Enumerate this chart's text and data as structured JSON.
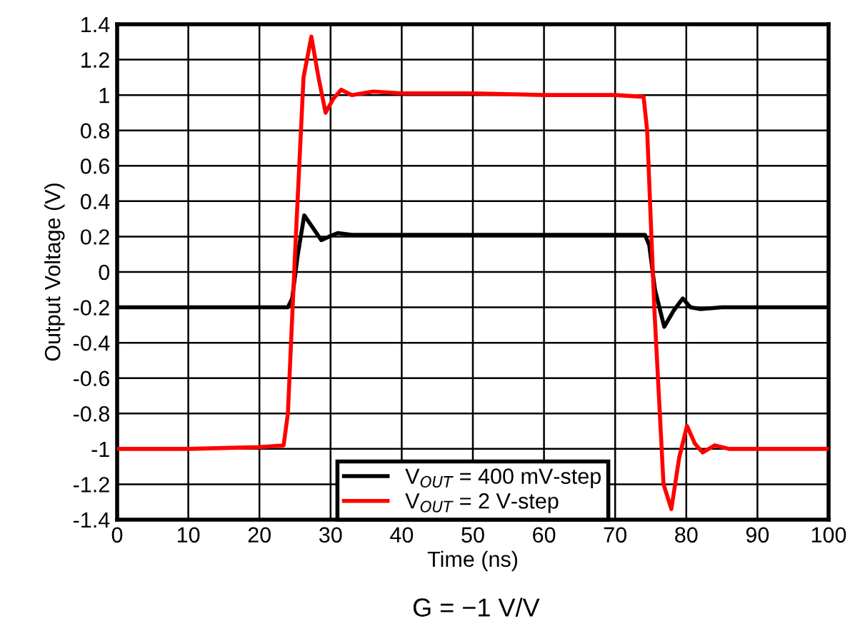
{
  "chart_data": {
    "type": "line",
    "xlabel": "Time (ns)",
    "ylabel": "Output Voltage (V)",
    "xlim": [
      0,
      100
    ],
    "xticks": [
      0,
      10,
      20,
      30,
      40,
      50,
      60,
      70,
      80,
      90,
      100
    ],
    "ylim": [
      -1.4,
      1.4
    ],
    "yticks": [
      1.4,
      1.2,
      1,
      0.8,
      0.6,
      0.4,
      0.2,
      0,
      -0.2,
      -0.4,
      -0.6,
      -0.8,
      -1,
      -1.2,
      -1.4
    ],
    "grid": true,
    "legend": "bottom",
    "line_style": "solid",
    "marker": "none",
    "annotations": [
      "G = −1 V/V"
    ],
    "series": [
      {
        "name": "V$_{OUT}$ = 400 mV-step",
        "color": "#000000",
        "x": [
          0,
          10,
          20,
          24.0,
          24.6,
          25.4,
          26.3,
          27.5,
          28.7,
          29.8,
          31.0,
          33,
          40,
          50,
          60,
          70,
          74.2,
          74.8,
          75.6,
          76.9,
          78.2,
          79.5,
          80.6,
          82,
          85,
          90,
          100
        ],
        "values": [
          -0.2,
          -0.2,
          -0.2,
          -0.2,
          -0.15,
          0.1,
          0.32,
          0.25,
          0.18,
          0.2,
          0.22,
          0.21,
          0.21,
          0.21,
          0.21,
          0.21,
          0.21,
          0.15,
          -0.1,
          -0.31,
          -0.22,
          -0.15,
          -0.2,
          -0.21,
          -0.2,
          -0.2,
          -0.2
        ]
      },
      {
        "name": "V$_{OUT}$ = 2 V-step",
        "color": "#ff0000",
        "x": [
          0,
          10,
          20,
          23.4,
          24.0,
          25.0,
          26.2,
          27.3,
          28.3,
          29.3,
          30.4,
          31.5,
          33,
          36,
          40,
          50,
          60,
          70,
          74.0,
          74.5,
          75.5,
          76.8,
          77.9,
          79.0,
          80.1,
          81.2,
          82.3,
          84,
          86,
          90,
          100
        ],
        "values": [
          -1.0,
          -1.0,
          -0.99,
          -0.98,
          -0.8,
          0.1,
          1.1,
          1.33,
          1.1,
          0.9,
          0.98,
          1.03,
          1.0,
          1.02,
          1.01,
          1.01,
          1.0,
          1.0,
          0.99,
          0.8,
          -0.2,
          -1.2,
          -1.34,
          -1.05,
          -0.87,
          -0.97,
          -1.02,
          -0.98,
          -1.0,
          -1.0,
          -1.0
        ]
      }
    ]
  }
}
